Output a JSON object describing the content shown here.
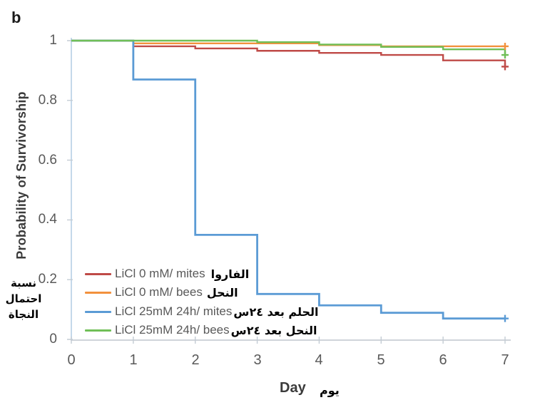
{
  "panel_label": "b",
  "chart_data": {
    "type": "line",
    "subtype": "step-survival-curve",
    "title": "",
    "xlabel": "Day",
    "xlabel_ar": "يوم",
    "ylabel": "Probability of Survivorship",
    "ylabel_ar_lines": [
      "نسبة",
      "احتمال",
      "النجاة"
    ],
    "xlim": [
      0,
      7
    ],
    "ylim": [
      0,
      1
    ],
    "grid": false,
    "legend_position": "lower-left",
    "xticks": [
      "0",
      "1",
      "2",
      "3",
      "4",
      "5",
      "6",
      "7"
    ],
    "yticks": [
      "1",
      "0.8",
      "0.6",
      "0.4",
      "0.2",
      "0"
    ],
    "x_days": [
      0,
      1,
      2,
      3,
      4,
      5,
      6,
      7
    ],
    "series": [
      {
        "name": "LiCl 0 mM/ mites",
        "name_ar": "الفاروا",
        "color": "#bf4a47",
        "line_width": 2.4,
        "values": [
          1,
          0.981,
          0.974,
          0.966,
          0.959,
          0.952,
          0.934,
          0.913
        ],
        "censor_at_day7": 0.913
      },
      {
        "name": "LiCl 0 mM/ bees",
        "name_ar": "النحل",
        "color": "#f2913d",
        "line_width": 2.4,
        "values": [
          1,
          0.991,
          0.991,
          0.991,
          0.985,
          0.981,
          0.981,
          0.981
        ],
        "censor_at_day7": 0.981
      },
      {
        "name": "LiCl 25mM 24h/ mites",
        "name_ar": "الحلم بعد ٢٤س",
        "color": "#5b9bd5",
        "line_width": 2.8,
        "values": [
          1,
          0.87,
          0.35,
          0.152,
          0.114,
          0.089,
          0.07,
          0.07
        ],
        "censor_at_day7": 0.07
      },
      {
        "name": "LiCl 25mM 24h/ bees",
        "name_ar": "النحل بعد ٢٤س",
        "color": "#70bf57",
        "line_width": 2.4,
        "values": [
          1,
          1,
          1,
          0.995,
          0.987,
          0.979,
          0.971,
          0.952
        ],
        "censor_at_day7": 0.952
      }
    ],
    "axis_colors": {
      "y_axis": "#b5cfe4",
      "x_axis": "#bfc6cd",
      "ticks": "#c3ccd4"
    }
  }
}
